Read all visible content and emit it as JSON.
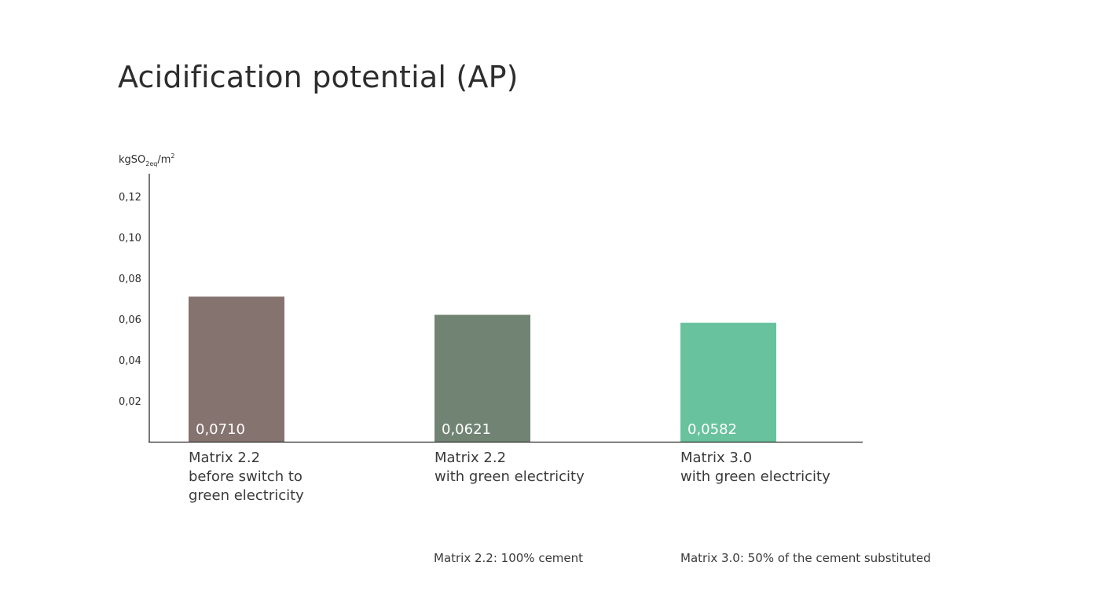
{
  "chart_data": {
    "type": "bar",
    "title": "Acidification potential (AP)",
    "ylabel": {
      "base": "kgSO",
      "subscript": "2eq",
      "mid": "/m",
      "superscript": "2"
    },
    "xlabel": "",
    "ylim": [
      0,
      0.132
    ],
    "yticks": [
      0.02,
      0.04,
      0.06,
      0.08,
      0.1,
      0.12
    ],
    "ytick_labels": [
      "0,02",
      "0,04",
      "0,06",
      "0,08",
      "0,10",
      "0,12"
    ],
    "categories": [
      [
        "Matrix 2.2",
        "before switch to",
        "green electricity"
      ],
      [
        "Matrix 2.2",
        "with green electricity"
      ],
      [
        "Matrix 3.0",
        "with green electricity"
      ]
    ],
    "values": [
      0.071,
      0.0621,
      0.0582
    ],
    "value_labels": [
      "0,0710",
      "0,0621",
      "0,0582"
    ],
    "colors": [
      "#857370",
      "#718474",
      "#68c29d"
    ],
    "grid": false
  },
  "notes": [
    "Matrix 2.2: 100% cement",
    "Matrix 3.0: 50% of the cement substituted"
  ]
}
